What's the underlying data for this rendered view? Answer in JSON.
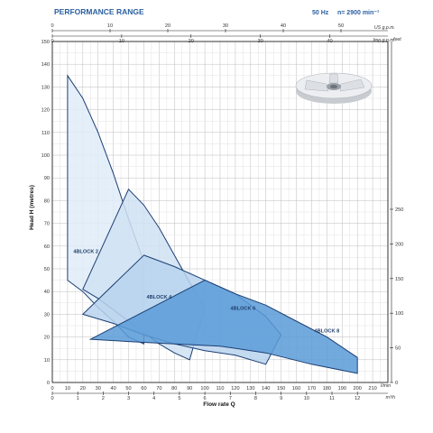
{
  "header": {
    "title": "PERFORMANCE RANGE",
    "frequency": "50 Hz",
    "speed": "n= 2900 min⁻¹"
  },
  "chart_data": {
    "type": "area",
    "title": "PERFORMANCE RANGE",
    "xlabel": "Flow rate Q",
    "ylabel": "Head H (metres)",
    "xlim": [
      0,
      220
    ],
    "ylim": [
      0,
      150
    ],
    "x_ticks": [
      0,
      10,
      20,
      30,
      40,
      50,
      60,
      70,
      80,
      90,
      100,
      110,
      120,
      130,
      140,
      150,
      160,
      170,
      180,
      190,
      200,
      210
    ],
    "x_unit": "l/min",
    "y_ticks": [
      0,
      10,
      20,
      30,
      40,
      50,
      60,
      70,
      80,
      90,
      100,
      110,
      120,
      130,
      140,
      150
    ],
    "secondary_axes": {
      "top_upper": {
        "unit": "US g.p.m.",
        "ticks": [
          0,
          10,
          20,
          30,
          40,
          50
        ]
      },
      "top_lower": {
        "unit": "Imp g.p.m.",
        "ticks": [
          0,
          10,
          20,
          30,
          40
        ]
      },
      "bottom": {
        "unit": "m³/h",
        "ticks": [
          0,
          1,
          2,
          3,
          4,
          5,
          6,
          7,
          8,
          9,
          10,
          11,
          12
        ]
      },
      "right": {
        "unit": "feet",
        "ticks": [
          0,
          50,
          100,
          150,
          200,
          250
        ]
      }
    },
    "grid": true,
    "legend": "none",
    "series": [
      {
        "name": "4BLOCK 2",
        "color": "#e1ecf8",
        "label_at": [
          22,
          57
        ],
        "upper": [
          [
            10,
            135
          ],
          [
            20,
            125
          ],
          [
            30,
            110
          ],
          [
            40,
            92
          ],
          [
            50,
            72
          ],
          [
            60,
            53
          ]
        ],
        "lower": [
          [
            10,
            45
          ],
          [
            20,
            40
          ],
          [
            30,
            33
          ],
          [
            40,
            27
          ],
          [
            50,
            20
          ],
          [
            60,
            17
          ]
        ]
      },
      {
        "name": "4BLOCK 4",
        "color": "#d0e2f3",
        "label_at": [
          70,
          37
        ],
        "upper": [
          [
            50,
            85
          ],
          [
            60,
            78
          ],
          [
            70,
            68
          ],
          [
            80,
            56
          ],
          [
            90,
            44
          ],
          [
            100,
            33
          ]
        ],
        "lower": [
          [
            20,
            41
          ],
          [
            30,
            37
          ],
          [
            40,
            32
          ],
          [
            50,
            27
          ],
          [
            60,
            22
          ],
          [
            70,
            17
          ],
          [
            80,
            13
          ],
          [
            90,
            10
          ]
        ]
      },
      {
        "name": "4BLOCK 6",
        "color": "#b8d4ee",
        "label_at": [
          125,
          32
        ],
        "upper": [
          [
            60,
            56
          ],
          [
            80,
            51
          ],
          [
            100,
            45
          ],
          [
            120,
            39
          ],
          [
            140,
            29
          ],
          [
            150,
            21
          ]
        ],
        "lower": [
          [
            20,
            30
          ],
          [
            40,
            26
          ],
          [
            60,
            21
          ],
          [
            80,
            17
          ],
          [
            100,
            14
          ],
          [
            120,
            12
          ],
          [
            140,
            8
          ]
        ]
      },
      {
        "name": "4BLOCK 8",
        "color": "#5a9bd8",
        "label_at": [
          180,
          22
        ],
        "upper": [
          [
            100,
            45
          ],
          [
            120,
            39
          ],
          [
            140,
            34
          ],
          [
            160,
            27
          ],
          [
            180,
            20
          ],
          [
            200,
            11
          ]
        ],
        "lower": [
          [
            25,
            19
          ],
          [
            50,
            18
          ],
          [
            80,
            17
          ],
          [
            110,
            16
          ],
          [
            140,
            13
          ],
          [
            170,
            8
          ],
          [
            200,
            4
          ]
        ]
      }
    ]
  }
}
